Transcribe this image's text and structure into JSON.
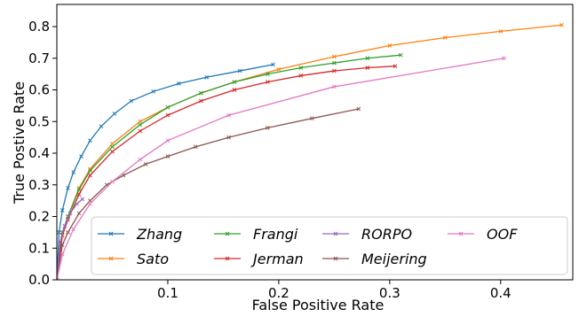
{
  "chart_data": {
    "type": "line",
    "title": "",
    "xlabel": "False Positive Rate",
    "ylabel": "True Postive Rate",
    "xlim": [
      0,
      0.465
    ],
    "ylim": [
      0,
      0.87
    ],
    "xticks": [
      0.1,
      0.2,
      0.3,
      0.4
    ],
    "xtick_labels": [
      "0.1",
      "0.2",
      "0.3",
      "0.4"
    ],
    "yticks": [
      0.0,
      0.1,
      0.2,
      0.3,
      0.4,
      0.5,
      0.6,
      0.7,
      0.8
    ],
    "ytick_labels": [
      "0.0",
      "0.1",
      "0.2",
      "0.3",
      "0.4",
      "0.5",
      "0.6",
      "0.7",
      "0.8"
    ],
    "grid": false,
    "legend": {
      "placement": "lower-right",
      "columns": 4
    },
    "marker": "x",
    "series": [
      {
        "name": "Zhang",
        "color": "#1f77b4",
        "x": [
          0.0,
          0.002,
          0.005,
          0.01,
          0.015,
          0.022,
          0.03,
          0.04,
          0.052,
          0.067,
          0.087,
          0.11,
          0.135,
          0.165,
          0.195
        ],
        "y": [
          0.0,
          0.15,
          0.22,
          0.29,
          0.34,
          0.39,
          0.44,
          0.485,
          0.525,
          0.565,
          0.595,
          0.62,
          0.64,
          0.66,
          0.68
        ]
      },
      {
        "name": "Sato",
        "color": "#ff7f0e",
        "x": [
          0.0,
          0.005,
          0.01,
          0.02,
          0.03,
          0.05,
          0.075,
          0.1,
          0.13,
          0.16,
          0.2,
          0.25,
          0.3,
          0.35,
          0.4,
          0.455
        ],
        "y": [
          0.0,
          0.15,
          0.2,
          0.29,
          0.35,
          0.43,
          0.5,
          0.545,
          0.59,
          0.625,
          0.665,
          0.705,
          0.74,
          0.765,
          0.785,
          0.805
        ]
      },
      {
        "name": "Frangi",
        "color": "#2ca02c",
        "x": [
          0.0,
          0.005,
          0.01,
          0.02,
          0.03,
          0.05,
          0.075,
          0.1,
          0.13,
          0.16,
          0.19,
          0.22,
          0.25,
          0.28,
          0.31
        ],
        "y": [
          0.0,
          0.15,
          0.2,
          0.285,
          0.345,
          0.42,
          0.49,
          0.545,
          0.59,
          0.625,
          0.65,
          0.67,
          0.685,
          0.7,
          0.71
        ]
      },
      {
        "name": "Jerman",
        "color": "#d62728",
        "x": [
          0.0,
          0.005,
          0.01,
          0.02,
          0.03,
          0.05,
          0.075,
          0.1,
          0.13,
          0.16,
          0.19,
          0.22,
          0.25,
          0.28,
          0.305
        ],
        "y": [
          0.0,
          0.14,
          0.19,
          0.27,
          0.33,
          0.405,
          0.47,
          0.52,
          0.565,
          0.6,
          0.625,
          0.645,
          0.66,
          0.67,
          0.675
        ]
      },
      {
        "name": "RORPO",
        "color": "#9467bd",
        "x": [
          0.0,
          0.003,
          0.007,
          0.012,
          0.018,
          0.023
        ],
        "y": [
          0.0,
          0.12,
          0.17,
          0.21,
          0.24,
          0.255
        ]
      },
      {
        "name": "Meijering",
        "color": "#8c564b",
        "x": [
          0.0,
          0.005,
          0.01,
          0.02,
          0.03,
          0.045,
          0.06,
          0.08,
          0.1,
          0.125,
          0.155,
          0.19,
          0.23,
          0.272
        ],
        "y": [
          0.0,
          0.11,
          0.15,
          0.21,
          0.25,
          0.3,
          0.33,
          0.365,
          0.39,
          0.42,
          0.45,
          0.48,
          0.51,
          0.54
        ]
      },
      {
        "name": "OOF",
        "color": "#e377c2",
        "x": [
          0.0,
          0.005,
          0.015,
          0.03,
          0.05,
          0.075,
          0.1,
          0.155,
          0.25,
          0.403
        ],
        "y": [
          0.0,
          0.08,
          0.16,
          0.24,
          0.31,
          0.38,
          0.44,
          0.52,
          0.61,
          0.7
        ]
      }
    ]
  }
}
